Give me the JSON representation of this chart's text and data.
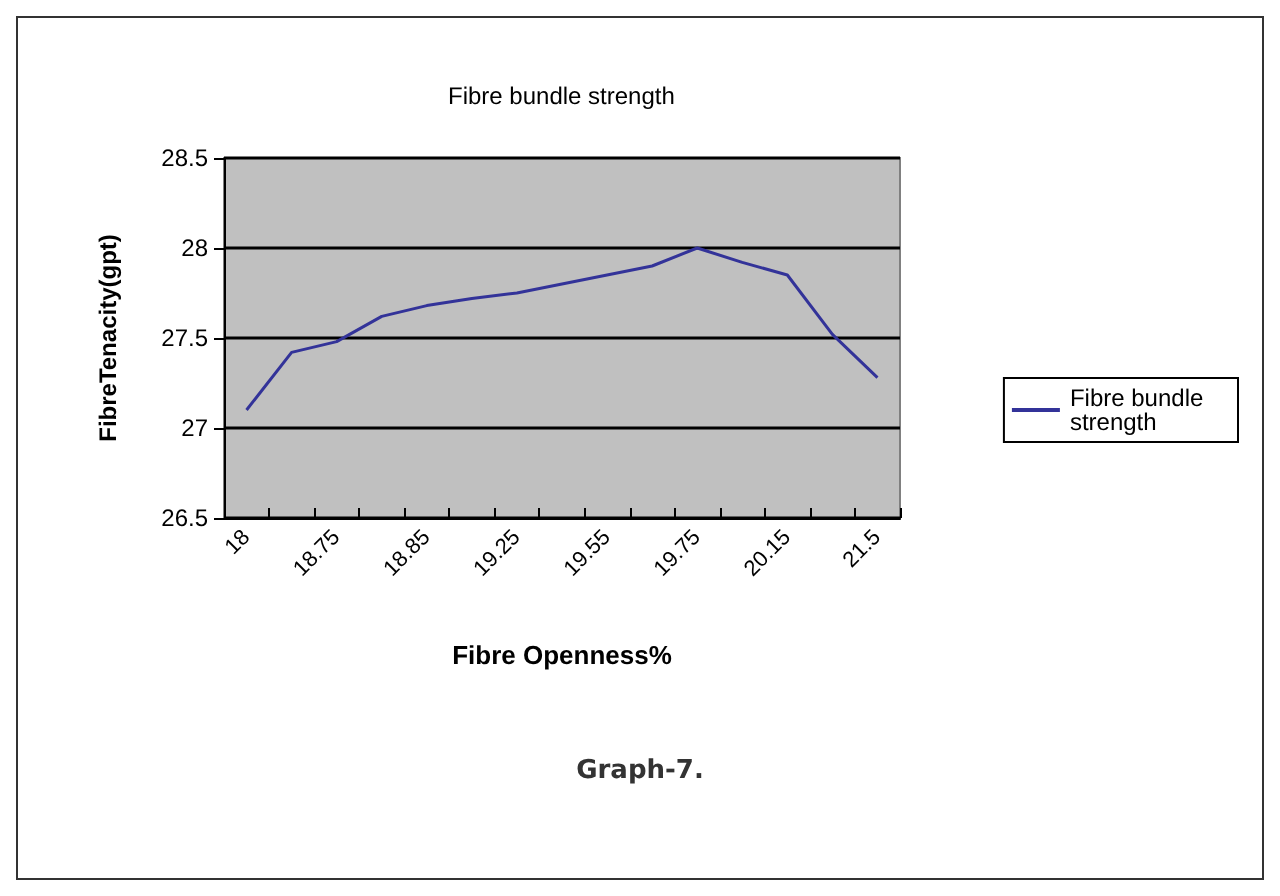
{
  "chart_data": {
    "type": "line",
    "title": "Fibre bundle strength",
    "xlabel": "Fibre Openness%",
    "ylabel": "FibreTenacity(gpt)",
    "categories": [
      "18",
      null,
      "18.75",
      null,
      "18.85",
      null,
      "19.25",
      null,
      "19.55",
      null,
      "19.75",
      null,
      "20.15",
      null,
      "21.5"
    ],
    "series": [
      {
        "name": "Fibre bundle strength",
        "color": "#333399",
        "values": [
          27.1,
          27.42,
          27.48,
          27.62,
          27.68,
          27.72,
          27.75,
          27.8,
          27.85,
          27.9,
          28.0,
          27.92,
          27.85,
          27.52,
          27.28
        ]
      }
    ],
    "ylim": [
      26.5,
      28.5
    ],
    "yticks": [
      26.5,
      27,
      27.5,
      28,
      28.5
    ],
    "grid": "y",
    "legend": "right",
    "marker": "none",
    "annotations": [
      "Graph-7."
    ]
  }
}
